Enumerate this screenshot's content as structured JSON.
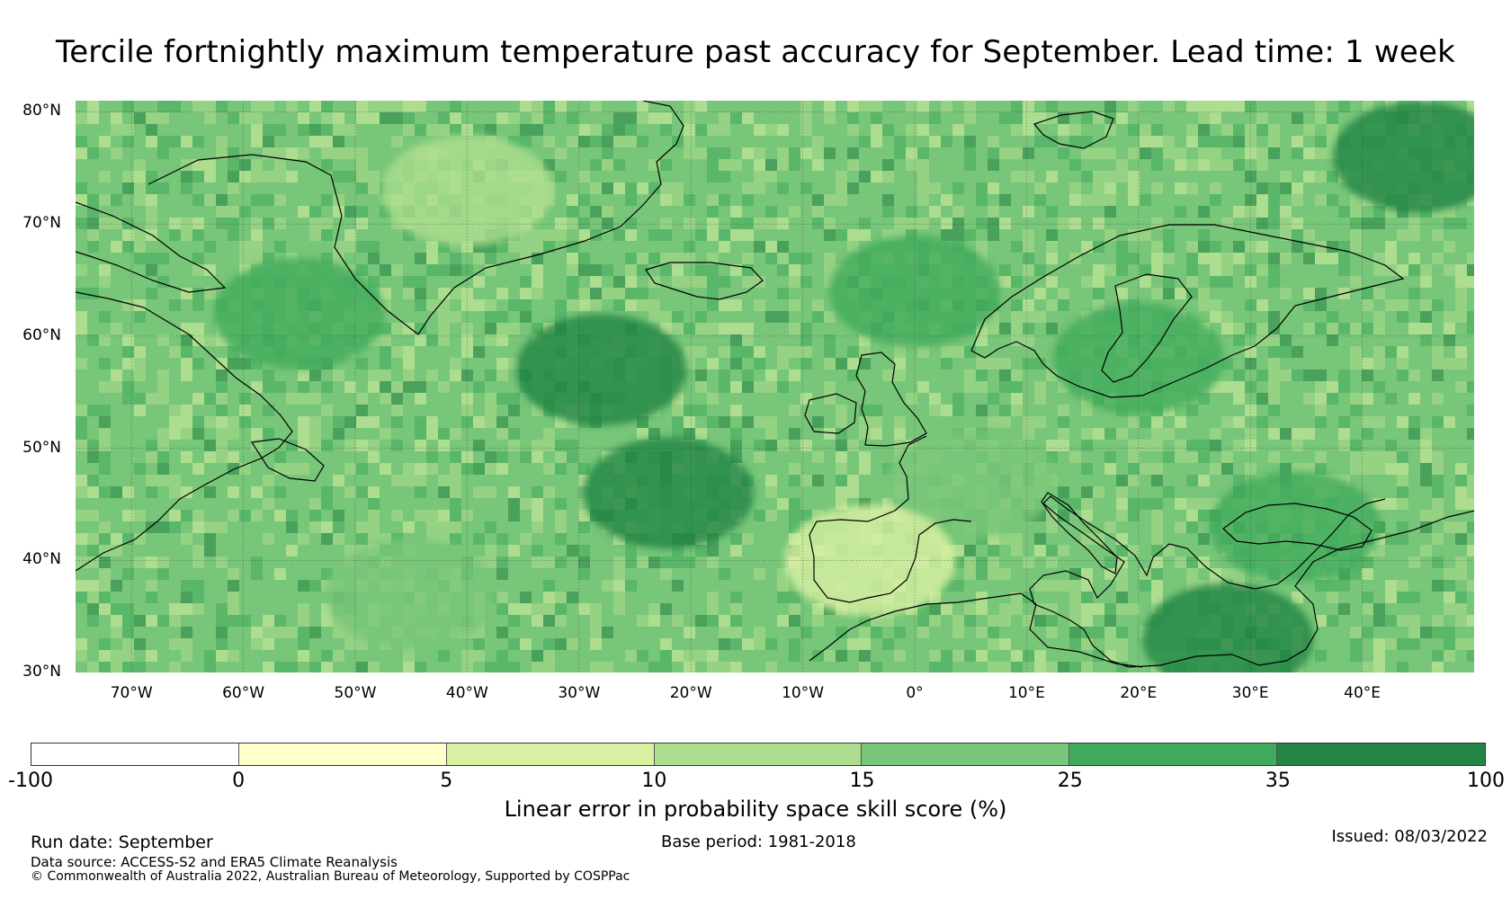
{
  "title": "Tercile fortnightly maximum temperature past accuracy for September. Lead time: 1 week",
  "map": {
    "lat_labels": [
      "80°N",
      "70°N",
      "60°N",
      "50°N",
      "40°N",
      "30°N"
    ],
    "lon_labels": [
      "70°W",
      "60°W",
      "50°W",
      "40°W",
      "30°W",
      "20°W",
      "10°W",
      "0°",
      "10°E",
      "20°E",
      "30°E",
      "40°E"
    ],
    "lat_values": [
      80,
      70,
      60,
      50,
      40,
      30
    ],
    "lon_values": [
      -70,
      -60,
      -50,
      -40,
      -30,
      -20,
      -10,
      0,
      10,
      20,
      30,
      40
    ],
    "extent": {
      "lon_min": -75,
      "lon_max": 50,
      "lat_min": 30,
      "lat_max": 81
    },
    "skill_regions": [
      {
        "name": "north-atlantic-core",
        "level": 6,
        "lon": -28,
        "lat": 57
      },
      {
        "name": "azores-region",
        "level": 6,
        "lon": -22,
        "lat": 46
      },
      {
        "name": "norwegian-sea",
        "level": 5,
        "lon": 0,
        "lat": 64
      },
      {
        "name": "labrador-sea",
        "level": 5,
        "lon": -55,
        "lat": 62
      },
      {
        "name": "barents-sea",
        "level": 6,
        "lon": 45,
        "lat": 76
      },
      {
        "name": "central-greenland",
        "level": 3,
        "lon": -40,
        "lat": 73
      },
      {
        "name": "mediterranean-east",
        "level": 6,
        "lon": 28,
        "lat": 33
      },
      {
        "name": "western-europe",
        "level": 4,
        "lon": 5,
        "lat": 47
      },
      {
        "name": "iberia",
        "level": 2,
        "lon": -4,
        "lat": 40
      },
      {
        "name": "black-sea",
        "level": 5,
        "lon": 34,
        "lat": 43
      },
      {
        "name": "baltic",
        "level": 5,
        "lon": 20,
        "lat": 58
      },
      {
        "name": "subtropical-atlantic",
        "level": 4,
        "lon": -45,
        "lat": 37
      }
    ]
  },
  "colorbar": {
    "ticks": [
      "-100",
      "0",
      "5",
      "10",
      "15",
      "25",
      "35",
      "100"
    ],
    "colors": [
      "#ffffff",
      "#ffffcc",
      "#d9f0a3",
      "#addd8e",
      "#78c679",
      "#41ab5d",
      "#238443"
    ],
    "label": "Linear error in probability space skill score (%)"
  },
  "footer": {
    "run_date": "Run date: September",
    "base_period": "Base period: 1981-2018",
    "issued": "Issued: 08/03/2022",
    "data_source": "Data source: ACCESS-S2 and ERA5 Climate Reanalysis",
    "copyright": "© Commonwealth of Australia 2022, Australian Bureau of Meteorology, Supported by COSPPac"
  }
}
